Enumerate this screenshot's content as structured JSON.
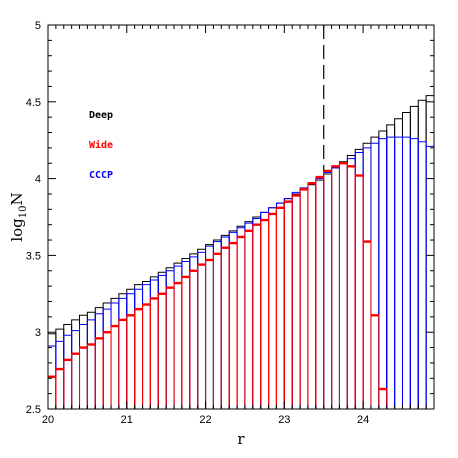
{
  "chart_data": {
    "type": "bar",
    "title": "",
    "xlabel": "r",
    "ylabel_main": "log",
    "ylabel_sub": "10",
    "ylabel_tail": "N",
    "xlim": [
      20,
      24.9
    ],
    "ylim": [
      2.5,
      5.0
    ],
    "bin_width": 0.1,
    "x_ticks": [
      20,
      21,
      22,
      23,
      24
    ],
    "y_ticks": [
      2.5,
      3,
      3.5,
      4,
      4.5,
      5
    ],
    "y_tick_labels": [
      "2.5",
      "3",
      "3.5",
      "4",
      "4.5",
      "5"
    ],
    "vline_x": 23.5,
    "legend_position": "upper-left",
    "bin_starts": [
      20.0,
      20.1,
      20.2,
      20.3,
      20.4,
      20.5,
      20.6,
      20.7,
      20.8,
      20.9,
      21.0,
      21.1,
      21.2,
      21.3,
      21.4,
      21.5,
      21.6,
      21.7,
      21.8,
      21.9,
      22.0,
      22.1,
      22.2,
      22.3,
      22.4,
      22.5,
      22.6,
      22.7,
      22.8,
      22.9,
      23.0,
      23.1,
      23.2,
      23.3,
      23.4,
      23.5,
      23.6,
      23.7,
      23.8,
      23.9,
      24.0,
      24.1,
      24.2,
      24.3,
      24.4,
      24.5,
      24.6,
      24.7,
      24.8
    ],
    "series": [
      {
        "name": "Deep",
        "color": "#000000",
        "values": [
          2.99,
          3.02,
          3.05,
          3.08,
          3.11,
          3.13,
          3.16,
          3.19,
          3.22,
          3.25,
          3.28,
          3.31,
          3.33,
          3.36,
          3.39,
          3.42,
          3.45,
          3.48,
          3.51,
          3.54,
          3.57,
          3.6,
          3.63,
          3.66,
          3.69,
          3.72,
          3.75,
          3.78,
          3.81,
          3.84,
          3.87,
          3.9,
          3.93,
          3.96,
          3.99,
          4.03,
          4.07,
          4.11,
          4.15,
          4.19,
          4.23,
          4.27,
          4.31,
          4.35,
          4.39,
          4.43,
          4.47,
          4.51,
          4.54
        ]
      },
      {
        "name": "Wide",
        "color": "#ff0000",
        "values": [
          2.71,
          2.76,
          2.82,
          2.86,
          2.9,
          2.92,
          2.96,
          3.0,
          3.04,
          3.08,
          3.11,
          3.15,
          3.18,
          3.22,
          3.25,
          3.29,
          3.32,
          3.36,
          3.4,
          3.44,
          3.47,
          3.51,
          3.55,
          3.58,
          3.62,
          3.66,
          3.7,
          3.73,
          3.77,
          3.81,
          3.85,
          3.89,
          3.93,
          3.97,
          4.01,
          4.05,
          4.08,
          4.1,
          4.08,
          4.02,
          3.59,
          3.11,
          2.63
        ]
      },
      {
        "name": "CCCP",
        "color": "#0000ff",
        "values": [
          2.91,
          2.94,
          2.98,
          3.01,
          3.05,
          3.08,
          3.12,
          3.15,
          3.19,
          3.22,
          3.25,
          3.28,
          3.31,
          3.34,
          3.37,
          3.4,
          3.43,
          3.46,
          3.49,
          3.52,
          3.56,
          3.59,
          3.62,
          3.65,
          3.68,
          3.71,
          3.74,
          3.78,
          3.81,
          3.84,
          3.87,
          3.91,
          3.94,
          3.97,
          4.0,
          4.04,
          4.07,
          4.1,
          4.13,
          4.17,
          4.2,
          4.23,
          4.26,
          4.27,
          4.27,
          4.27,
          4.26,
          4.24,
          4.21
        ]
      }
    ],
    "legend": [
      {
        "label": "Deep",
        "color": "#000000"
      },
      {
        "label": "Wide",
        "color": "#ff0000"
      },
      {
        "label": "CCCP",
        "color": "#0000ff"
      }
    ]
  }
}
